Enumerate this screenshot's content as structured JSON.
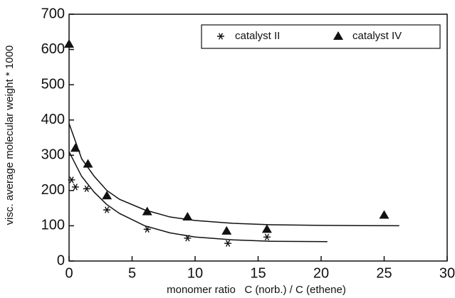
{
  "chart_data": {
    "type": "scatter",
    "xlabel": "monomer ratio   C (norb.) / C (ethene)",
    "ylabel": "visc. average molecular weight  * 1000",
    "xlim": [
      0,
      30
    ],
    "xticks": [
      0,
      5,
      10,
      15,
      20,
      25,
      30
    ],
    "ylim": [
      0,
      700
    ],
    "yticks": [
      0,
      100,
      200,
      300,
      400,
      500,
      600,
      700
    ],
    "series": [
      {
        "name": "catalyst II",
        "marker": "asterisk",
        "color": "#111111",
        "x": [
          0.2,
          0.5,
          1.4,
          3.0,
          6.2,
          9.4,
          12.6,
          15.7
        ],
        "values": [
          230,
          210,
          205,
          145,
          90,
          65,
          50,
          68
        ]
      },
      {
        "name": "catalyst IV",
        "marker": "triangle",
        "color": "#111111",
        "x": [
          0,
          0.5,
          1.5,
          3.0,
          6.2,
          9.4,
          12.5,
          15.7,
          25.0
        ],
        "values": [
          615,
          320,
          275,
          185,
          140,
          125,
          85,
          90,
          130
        ]
      },
      {
        "marker": "line",
        "color": "#111111",
        "x": [
          0,
          1,
          2,
          3,
          4,
          6,
          8,
          10,
          13,
          16,
          20.5
        ],
        "values": [
          310,
          240,
          195,
          160,
          135,
          100,
          80,
          68,
          60,
          56,
          55
        ]
      },
      {
        "marker": "line",
        "color": "#111111",
        "x": [
          0,
          1,
          2,
          3,
          4,
          6,
          8,
          10,
          13,
          16,
          20,
          26.2
        ],
        "values": [
          390,
          290,
          240,
          200,
          175,
          145,
          125,
          115,
          107,
          103,
          101,
          100
        ]
      }
    ]
  }
}
